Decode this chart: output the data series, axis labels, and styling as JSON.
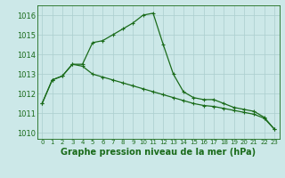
{
  "title": "Graphe pression niveau de la mer (hPa)",
  "x": [
    0,
    1,
    2,
    3,
    4,
    5,
    6,
    7,
    8,
    9,
    10,
    11,
    12,
    13,
    14,
    15,
    16,
    17,
    18,
    19,
    20,
    21,
    22,
    23
  ],
  "series1": [
    1011.5,
    1012.7,
    1012.9,
    1013.5,
    1013.5,
    1014.6,
    1014.7,
    1015.0,
    1015.3,
    1015.6,
    1016.0,
    1016.1,
    1014.5,
    1013.0,
    1012.1,
    1011.8,
    1011.7,
    1011.7,
    1011.5,
    1011.3,
    1011.2,
    1011.1,
    1010.8,
    1010.2
  ],
  "series2": [
    1011.5,
    1012.7,
    1012.9,
    1013.5,
    1013.4,
    1013.0,
    1012.85,
    1012.7,
    1012.55,
    1012.4,
    1012.25,
    1012.1,
    1011.95,
    1011.8,
    1011.65,
    1011.5,
    1011.4,
    1011.35,
    1011.25,
    1011.15,
    1011.05,
    1010.95,
    1010.75,
    1010.2
  ],
  "ylim": [
    1009.7,
    1016.5
  ],
  "yticks": [
    1010,
    1011,
    1012,
    1013,
    1014,
    1015,
    1016
  ],
  "line_color": "#1a6b1a",
  "bg_color": "#cce8e8",
  "grid_color": "#aacece",
  "marker": "+",
  "marker_size": 3,
  "marker_edge_width": 0.8,
  "line_width": 0.9,
  "title_fontsize": 7,
  "ytick_fontsize": 6,
  "xtick_fontsize": 5
}
